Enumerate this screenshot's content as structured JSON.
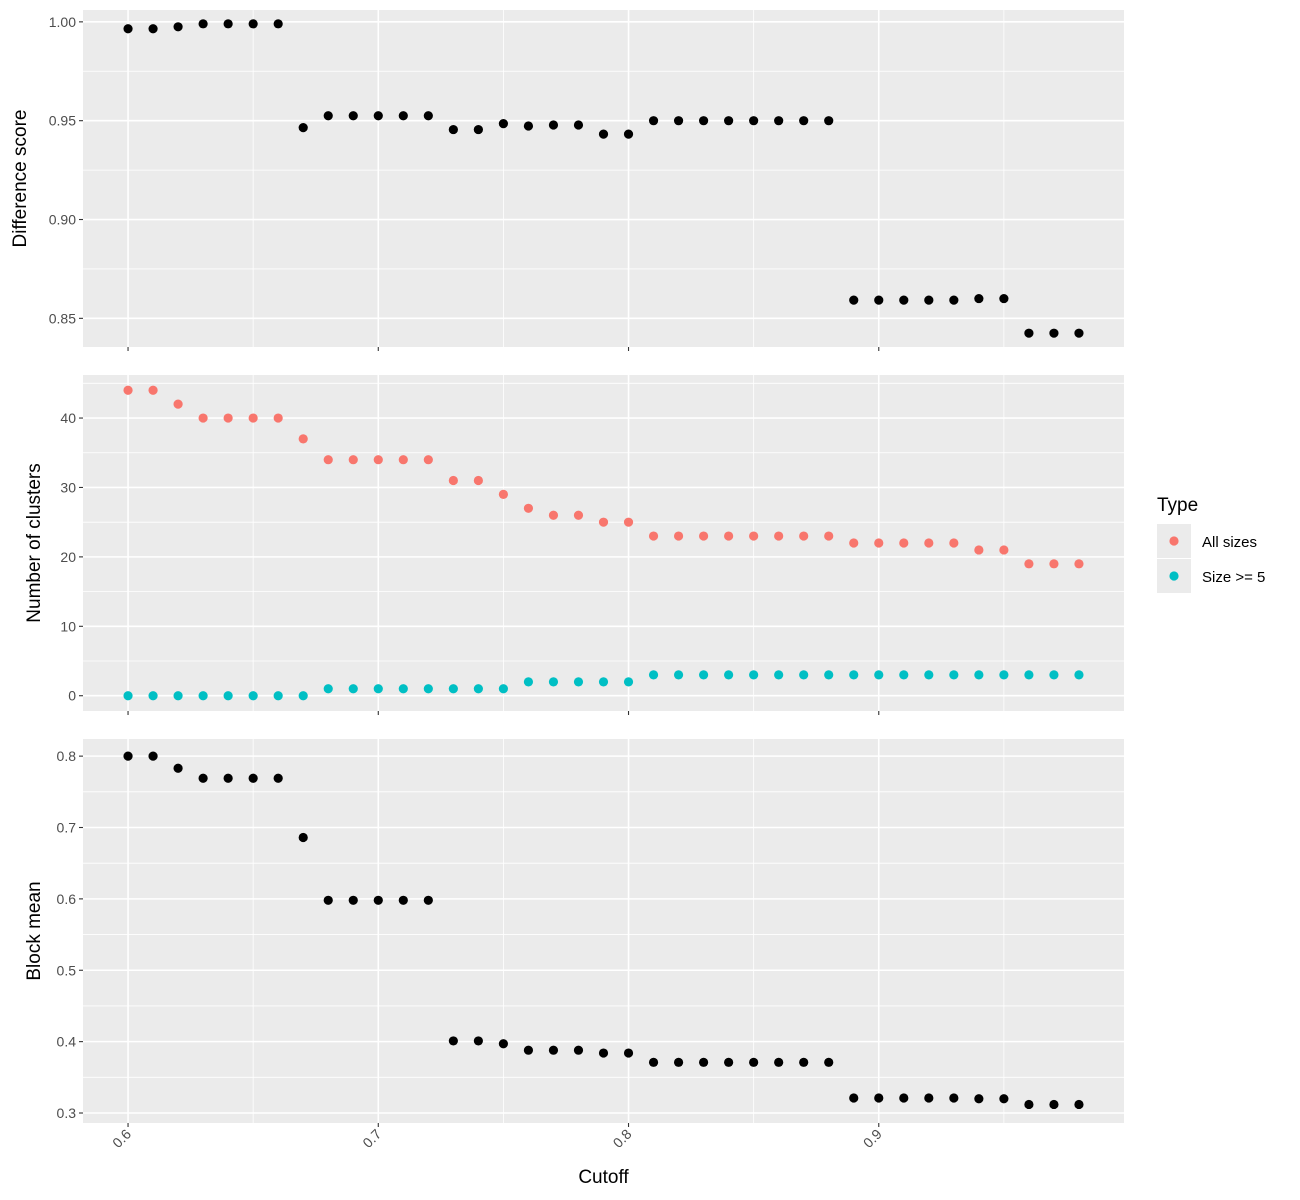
{
  "chart_data": [
    {
      "type": "scatter",
      "title": "",
      "xlabel": "",
      "ylabel": "Difference score",
      "xlim": [
        0.582,
        0.998
      ],
      "ylim": [
        0.8355,
        1.006
      ],
      "xticks": [
        0.6,
        0.7,
        0.8,
        0.9
      ],
      "yticks": [
        0.85,
        0.9,
        0.95,
        1.0
      ],
      "ytick_labels": [
        "0.85",
        "0.90",
        "0.95",
        "1.00"
      ],
      "grid": true,
      "x": [
        0.6,
        0.61,
        0.62,
        0.63,
        0.64,
        0.65,
        0.66,
        0.67,
        0.68,
        0.69,
        0.7,
        0.71,
        0.72,
        0.73,
        0.74,
        0.75,
        0.76,
        0.77,
        0.78,
        0.79,
        0.8,
        0.81,
        0.82,
        0.83,
        0.84,
        0.85,
        0.86,
        0.87,
        0.88,
        0.89,
        0.9,
        0.91,
        0.92,
        0.93,
        0.94,
        0.95,
        0.96,
        0.97,
        0.98
      ],
      "series": [
        {
          "color": "#000000",
          "values": [
            0.9965,
            0.9965,
            0.9975,
            0.999,
            0.999,
            0.999,
            0.999,
            0.9465,
            0.9525,
            0.9525,
            0.9525,
            0.9525,
            0.9525,
            0.9455,
            0.9455,
            0.9485,
            0.9473,
            0.9478,
            0.9478,
            0.9432,
            0.9432,
            0.95,
            0.95,
            0.95,
            0.95,
            0.95,
            0.95,
            0.95,
            0.95,
            0.8592,
            0.8592,
            0.8592,
            0.8592,
            0.8592,
            0.86,
            0.86,
            0.8425,
            0.8425,
            0.8425
          ]
        }
      ]
    },
    {
      "type": "scatter",
      "title": "",
      "xlabel": "",
      "ylabel": "Number of clusters",
      "xlim": [
        0.582,
        0.998
      ],
      "ylim": [
        -2.2,
        46.2
      ],
      "xticks": [
        0.6,
        0.7,
        0.8,
        0.9
      ],
      "yticks": [
        0,
        10,
        20,
        30,
        40
      ],
      "ytick_labels": [
        "0",
        "10",
        "20",
        "30",
        "40"
      ],
      "grid": true,
      "legend": {
        "title": "Type",
        "position": "right",
        "entries": [
          {
            "label": "All sizes",
            "color": "#F8766D"
          },
          {
            "label": "Size >= 5",
            "color": "#00BFC4"
          }
        ]
      },
      "x": [
        0.6,
        0.61,
        0.62,
        0.63,
        0.64,
        0.65,
        0.66,
        0.67,
        0.68,
        0.69,
        0.7,
        0.71,
        0.72,
        0.73,
        0.74,
        0.75,
        0.76,
        0.77,
        0.78,
        0.79,
        0.8,
        0.81,
        0.82,
        0.83,
        0.84,
        0.85,
        0.86,
        0.87,
        0.88,
        0.89,
        0.9,
        0.91,
        0.92,
        0.93,
        0.94,
        0.95,
        0.96,
        0.97,
        0.98
      ],
      "series": [
        {
          "name": "All sizes",
          "color": "#F8766D",
          "values": [
            44,
            44,
            42,
            40,
            40,
            40,
            40,
            37,
            34,
            34,
            34,
            34,
            34,
            31,
            31,
            29,
            27,
            26,
            26,
            25,
            25,
            23,
            23,
            23,
            23,
            23,
            23,
            23,
            23,
            22,
            22,
            22,
            22,
            22,
            21,
            21,
            19,
            19,
            19
          ]
        },
        {
          "name": "Size >= 5",
          "color": "#00BFC4",
          "values": [
            0,
            0,
            0,
            0,
            0,
            0,
            0,
            0,
            1,
            1,
            1,
            1,
            1,
            1,
            1,
            1,
            2,
            2,
            2,
            2,
            2,
            3,
            3,
            3,
            3,
            3,
            3,
            3,
            3,
            3,
            3,
            3,
            3,
            3,
            3,
            3,
            3,
            3,
            3
          ]
        }
      ]
    },
    {
      "type": "scatter",
      "title": "",
      "xlabel": "Cutoff",
      "ylabel": "Block mean",
      "xlim": [
        0.582,
        0.998
      ],
      "ylim": [
        0.286,
        0.824
      ],
      "xticks": [
        0.6,
        0.7,
        0.8,
        0.9
      ],
      "xtick_labels": [
        "0.6",
        "0.7",
        "0.8",
        "0.9"
      ],
      "yticks": [
        0.3,
        0.4,
        0.5,
        0.6,
        0.7,
        0.8
      ],
      "ytick_labels": [
        "0.3",
        "0.4",
        "0.5",
        "0.6",
        "0.7",
        "0.8"
      ],
      "grid": true,
      "x": [
        0.6,
        0.61,
        0.62,
        0.63,
        0.64,
        0.65,
        0.66,
        0.67,
        0.68,
        0.69,
        0.7,
        0.71,
        0.72,
        0.73,
        0.74,
        0.75,
        0.76,
        0.77,
        0.78,
        0.79,
        0.8,
        0.81,
        0.82,
        0.83,
        0.84,
        0.85,
        0.86,
        0.87,
        0.88,
        0.89,
        0.9,
        0.91,
        0.92,
        0.93,
        0.94,
        0.95,
        0.96,
        0.97,
        0.98
      ],
      "series": [
        {
          "color": "#000000",
          "values": [
            0.8,
            0.8,
            0.783,
            0.769,
            0.769,
            0.769,
            0.769,
            0.686,
            0.598,
            0.598,
            0.598,
            0.598,
            0.598,
            0.401,
            0.401,
            0.397,
            0.388,
            0.388,
            0.388,
            0.384,
            0.384,
            0.371,
            0.371,
            0.371,
            0.371,
            0.371,
            0.371,
            0.371,
            0.371,
            0.321,
            0.321,
            0.321,
            0.321,
            0.321,
            0.32,
            0.32,
            0.312,
            0.312,
            0.312
          ]
        }
      ]
    }
  ]
}
